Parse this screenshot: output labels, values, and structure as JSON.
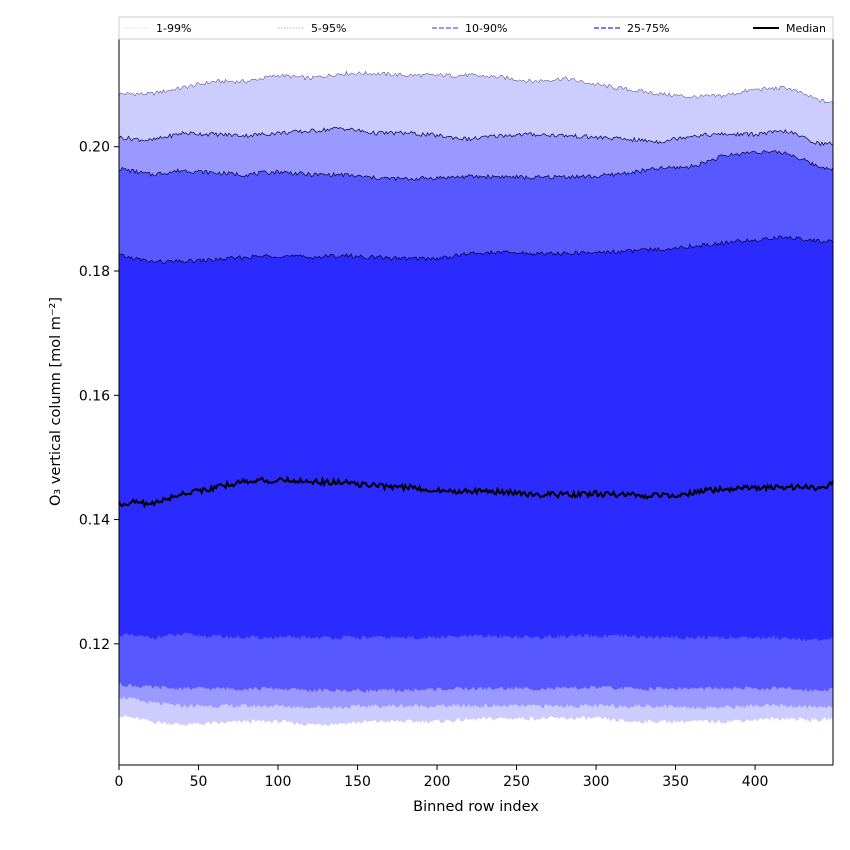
{
  "chart_data": {
    "type": "area",
    "xlabel": "Binned row index",
    "ylabel": "O₃ vertical column [mol m⁻²]",
    "xlim": [
      0,
      449
    ],
    "ylim": [
      0.1005,
      0.2175
    ],
    "xticks": [
      0,
      50,
      100,
      150,
      200,
      250,
      300,
      350,
      400
    ],
    "yticks": [
      0.12,
      0.14,
      0.16,
      0.18,
      0.2
    ],
    "legend_position": "top",
    "colors": {
      "band_1_99": "#ccccff",
      "band_5_95": "#9999ff",
      "band_10_90": "#5858ff",
      "band_25_75": "#2b2bff",
      "median": "#000000"
    },
    "bands": [
      {
        "name": "1-99%",
        "x": [
          0,
          20,
          40,
          60,
          80,
          100,
          120,
          140,
          160,
          180,
          200,
          220,
          240,
          260,
          280,
          300,
          320,
          340,
          360,
          380,
          400,
          420,
          440,
          449
        ],
        "lower": [
          0.1085,
          0.1075,
          0.107,
          0.1072,
          0.1075,
          0.1075,
          0.107,
          0.1072,
          0.1075,
          0.1075,
          0.1075,
          0.1078,
          0.108,
          0.108,
          0.108,
          0.108,
          0.1075,
          0.1075,
          0.1075,
          0.1075,
          0.1078,
          0.108,
          0.1077,
          0.108
        ],
        "upper": [
          0.2085,
          0.2085,
          0.2095,
          0.2105,
          0.2105,
          0.2115,
          0.211,
          0.2118,
          0.2118,
          0.2115,
          0.2115,
          0.2115,
          0.2112,
          0.2105,
          0.211,
          0.21,
          0.2092,
          0.2085,
          0.208,
          0.2082,
          0.2092,
          0.2095,
          0.2075,
          0.207
        ]
      },
      {
        "name": "5-95%",
        "x": [
          0,
          20,
          40,
          60,
          80,
          100,
          120,
          140,
          160,
          180,
          200,
          220,
          240,
          260,
          280,
          300,
          320,
          340,
          360,
          380,
          400,
          420,
          440,
          449
        ],
        "lower": [
          0.1115,
          0.1105,
          0.11,
          0.11,
          0.11,
          0.11,
          0.1098,
          0.1098,
          0.11,
          0.11,
          0.11,
          0.11,
          0.11,
          0.11,
          0.11,
          0.11,
          0.11,
          0.11,
          0.1098,
          0.1098,
          0.11,
          0.11,
          0.1098,
          0.11
        ],
        "upper": [
          0.2015,
          0.201,
          0.2022,
          0.202,
          0.2018,
          0.2022,
          0.2025,
          0.203,
          0.2022,
          0.2022,
          0.2018,
          0.2012,
          0.2018,
          0.202,
          0.2018,
          0.2015,
          0.2012,
          0.2008,
          0.2018,
          0.202,
          0.202,
          0.2025,
          0.2005,
          0.2005
        ]
      },
      {
        "name": "10-90%",
        "x": [
          0,
          20,
          40,
          60,
          80,
          100,
          120,
          140,
          160,
          180,
          200,
          220,
          240,
          260,
          280,
          300,
          320,
          340,
          360,
          380,
          400,
          420,
          440,
          449
        ],
        "lower": [
          0.1135,
          0.113,
          0.1128,
          0.1128,
          0.1128,
          0.1128,
          0.1125,
          0.1125,
          0.1125,
          0.1125,
          0.1127,
          0.1128,
          0.1128,
          0.1128,
          0.1128,
          0.113,
          0.1128,
          0.1128,
          0.1128,
          0.1128,
          0.1128,
          0.1128,
          0.1125,
          0.1128
        ],
        "upper": [
          0.1965,
          0.1955,
          0.1962,
          0.1958,
          0.1955,
          0.196,
          0.1955,
          0.1955,
          0.195,
          0.1948,
          0.195,
          0.1952,
          0.1952,
          0.195,
          0.1952,
          0.1952,
          0.1958,
          0.1965,
          0.1968,
          0.1985,
          0.1992,
          0.199,
          0.1968,
          0.1965
        ]
      },
      {
        "name": "25-75%",
        "x": [
          0,
          20,
          40,
          60,
          80,
          100,
          120,
          140,
          160,
          180,
          200,
          220,
          240,
          260,
          280,
          300,
          320,
          340,
          360,
          380,
          400,
          420,
          440,
          449
        ],
        "lower": [
          0.1215,
          0.121,
          0.1215,
          0.1212,
          0.121,
          0.121,
          0.121,
          0.121,
          0.121,
          0.121,
          0.121,
          0.1212,
          0.1212,
          0.121,
          0.1212,
          0.1212,
          0.1212,
          0.121,
          0.121,
          0.121,
          0.121,
          0.121,
          0.1205,
          0.1208
        ],
        "upper": [
          0.1825,
          0.1815,
          0.1815,
          0.1818,
          0.1822,
          0.1825,
          0.1822,
          0.1825,
          0.1822,
          0.182,
          0.182,
          0.1828,
          0.183,
          0.1828,
          0.1828,
          0.183,
          0.1832,
          0.1835,
          0.184,
          0.1845,
          0.185,
          0.1855,
          0.1848,
          0.1848
        ]
      }
    ],
    "median": {
      "name": "Median",
      "x": [
        0,
        10,
        20,
        30,
        40,
        50,
        60,
        70,
        80,
        90,
        100,
        110,
        120,
        130,
        140,
        150,
        160,
        170,
        180,
        190,
        200,
        210,
        220,
        230,
        240,
        250,
        260,
        270,
        280,
        290,
        300,
        310,
        320,
        330,
        340,
        350,
        360,
        370,
        380,
        390,
        400,
        410,
        420,
        430,
        440,
        449
      ],
      "y": [
        0.1425,
        0.1428,
        0.1425,
        0.1433,
        0.1442,
        0.1447,
        0.145,
        0.1457,
        0.1462,
        0.1463,
        0.1462,
        0.1463,
        0.1462,
        0.146,
        0.146,
        0.1457,
        0.1455,
        0.1453,
        0.1452,
        0.145,
        0.1447,
        0.1445,
        0.1447,
        0.1445,
        0.1445,
        0.1443,
        0.144,
        0.144,
        0.144,
        0.144,
        0.1442,
        0.144,
        0.144,
        0.1438,
        0.144,
        0.144,
        0.1442,
        0.1447,
        0.1448,
        0.145,
        0.145,
        0.1452,
        0.1452,
        0.1452,
        0.145,
        0.1458
      ]
    },
    "legend": [
      {
        "label": "1-99%",
        "style": "thin",
        "color": "#ccccff"
      },
      {
        "label": "5-95%",
        "style": "thin",
        "color": "#9999ff"
      },
      {
        "label": "10-90%",
        "style": "dashed",
        "color": "#5858ff"
      },
      {
        "label": "25-75%",
        "style": "dashed",
        "color": "#2b2bff"
      },
      {
        "label": "Median",
        "style": "solid",
        "color": "#000000"
      }
    ]
  }
}
